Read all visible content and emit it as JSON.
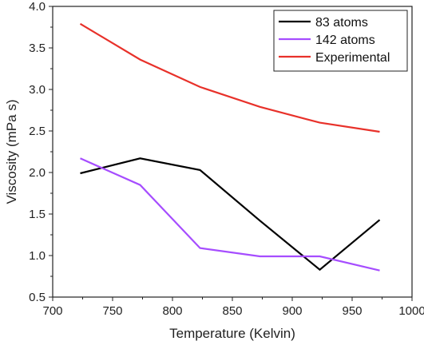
{
  "chart_data": {
    "type": "line",
    "xlabel": "Temperature (Kelvin)",
    "ylabel": "Viscosity (mPa s)",
    "xlim": [
      700,
      1000
    ],
    "ylim": [
      0.5,
      4.0
    ],
    "xticks": [
      "700",
      "750",
      "800",
      "850",
      "900",
      "950",
      "1000"
    ],
    "yticks": [
      "0.5",
      "1.0",
      "1.5",
      "2.0",
      "2.5",
      "3.0",
      "3.5",
      "4.0"
    ],
    "legend_position": "top-right",
    "series": [
      {
        "name": "83 atoms",
        "color": "#000000",
        "x": [
          723,
          773,
          823,
          873,
          923,
          973
        ],
        "y": [
          1.99,
          2.17,
          2.03,
          1.42,
          0.83,
          1.43
        ]
      },
      {
        "name": "142 atoms",
        "color": "#a64dff",
        "x": [
          723,
          773,
          823,
          873,
          923,
          973
        ],
        "y": [
          2.17,
          1.85,
          1.09,
          0.99,
          0.99,
          0.82
        ]
      },
      {
        "name": "Experimental",
        "color": "#e8312a",
        "x": [
          723,
          773,
          823,
          873,
          923,
          973
        ],
        "y": [
          3.79,
          3.36,
          3.03,
          2.79,
          2.6,
          2.49
        ]
      }
    ]
  }
}
